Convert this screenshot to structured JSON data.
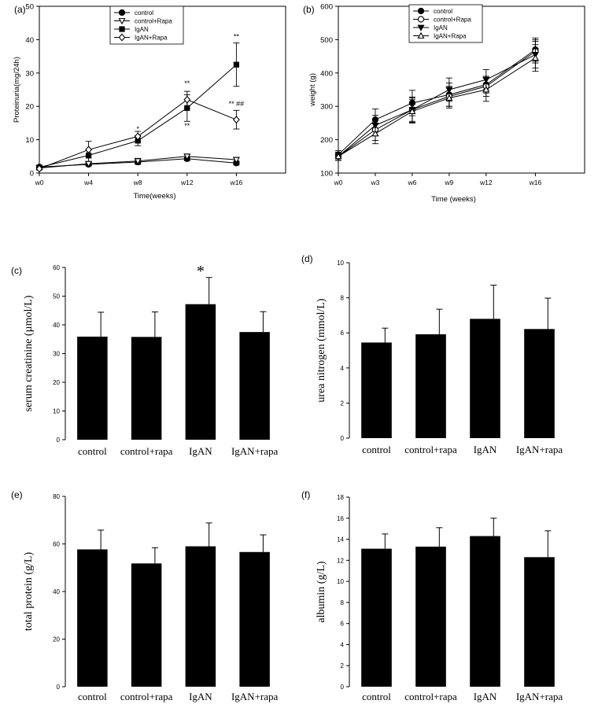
{
  "figure": {
    "background": "#ffffff",
    "ink": "#000000"
  },
  "chart_data": [
    {
      "type": "line",
      "panel_label": "(a)",
      "title": "",
      "xlabel": "Time(weeks)",
      "ylabel": "Proteinuria(mg/24h)",
      "categories": [
        "w0",
        "w4",
        "w8",
        "w12",
        "w16"
      ],
      "x": [
        0,
        4,
        8,
        12,
        16
      ],
      "xlim": [
        0,
        20
      ],
      "ylim": [
        0,
        50
      ],
      "yticks": [
        0,
        10,
        20,
        30,
        40,
        50
      ],
      "legend": "top-center",
      "series": [
        {
          "name": "control",
          "marker": "filled-circle",
          "values": [
            1.8,
            2.6,
            3.3,
            4.3,
            3.0
          ],
          "errors": [
            0.4,
            0.5,
            0.7,
            0.6,
            0.6
          ]
        },
        {
          "name": "control+Rapa",
          "marker": "open-triangle-down",
          "values": [
            1.5,
            2.8,
            3.6,
            5.0,
            4.0
          ],
          "errors": [
            0.4,
            0.6,
            0.8,
            0.7,
            0.7
          ]
        },
        {
          "name": "IgAN",
          "marker": "filled-square",
          "values": [
            1.7,
            5.3,
            9.7,
            19.5,
            32.5
          ],
          "errors": [
            0.5,
            1.8,
            1.5,
            4.0,
            6.5
          ]
        },
        {
          "name": "IgAN+Rapa",
          "marker": "open-diamond",
          "values": [
            1.3,
            7.0,
            11.0,
            22.0,
            16.0
          ],
          "errors": [
            0.4,
            2.5,
            1.5,
            2.5,
            2.8
          ]
        }
      ],
      "annotations": [
        {
          "text": "*",
          "x": 8,
          "y": 12.5
        },
        {
          "text": "**",
          "x": 12,
          "y": 26.2
        },
        {
          "text": "**",
          "x": 12,
          "y": 13.5
        },
        {
          "text": "**",
          "x": 16,
          "y": 40.2
        },
        {
          "text": "** ##",
          "x": 16,
          "y": 20.0
        }
      ]
    },
    {
      "type": "line",
      "panel_label": "(b)",
      "title": "",
      "xlabel": "Time (weeks)",
      "ylabel": "weight (g)",
      "categories": [
        "w0",
        "w3",
        "w6",
        "w9",
        "w12",
        "w16"
      ],
      "x": [
        0,
        3,
        6,
        9,
        12,
        16
      ],
      "xlim": [
        0,
        20
      ],
      "ylim": [
        100,
        600
      ],
      "yticks": [
        100,
        200,
        300,
        400,
        500,
        600
      ],
      "legend": "top-center",
      "series": [
        {
          "name": "control",
          "marker": "filled-circle",
          "values": [
            155,
            260,
            310,
            335,
            365,
            470
          ],
          "errors": [
            12,
            32,
            38,
            35,
            25,
            35
          ]
        },
        {
          "name": "control+Rapa",
          "marker": "open-circle",
          "values": [
            150,
            230,
            290,
            330,
            360,
            465
          ],
          "errors": [
            12,
            32,
            38,
            30,
            30,
            35
          ]
        },
        {
          "name": "IgAN",
          "marker": "filled-triangle-down",
          "values": [
            150,
            243,
            290,
            350,
            380,
            455
          ],
          "errors": [
            12,
            30,
            35,
            35,
            30,
            40
          ]
        },
        {
          "name": "IgAN+Rapa",
          "marker": "open-triangle-up",
          "values": [
            150,
            218,
            285,
            325,
            350,
            445
          ],
          "errors": [
            12,
            30,
            35,
            30,
            35,
            40
          ]
        }
      ]
    },
    {
      "type": "bar",
      "panel_label": "(c)",
      "title": "",
      "xlabel": "",
      "ylabel": "serum creatinine (µmol/L)",
      "categories": [
        "control",
        "control+rapa",
        "IgAN",
        "IgAN+rapa"
      ],
      "values": [
        35.9,
        35.8,
        47.2,
        37.5
      ],
      "errors": [
        8.5,
        8.7,
        9.3,
        7.1
      ],
      "ylim": [
        0,
        60
      ],
      "yticks": [
        0,
        10,
        20,
        30,
        40,
        50,
        60
      ],
      "annotations": [
        {
          "text": "*",
          "category": "IgAN"
        }
      ]
    },
    {
      "type": "bar",
      "panel_label": "(d)",
      "title": "",
      "xlabel": "",
      "ylabel": "urea nitrogen (mmol/L)",
      "categories": [
        "control",
        "control+rapa",
        "IgAN",
        "IgAN+rapa"
      ],
      "values": [
        5.45,
        5.92,
        6.8,
        6.22
      ],
      "errors": [
        0.82,
        1.43,
        1.92,
        1.76
      ],
      "ylim": [
        0,
        10
      ],
      "yticks": [
        0,
        2,
        4,
        6,
        8,
        10
      ]
    },
    {
      "type": "bar",
      "panel_label": "(e)",
      "title": "",
      "xlabel": "",
      "ylabel": "total protein (g/L)",
      "categories": [
        "control",
        "control+rapa",
        "IgAN",
        "IgAN+rapa"
      ],
      "values": [
        57.7,
        51.8,
        59.0,
        56.6
      ],
      "errors": [
        8.1,
        6.6,
        9.8,
        7.2
      ],
      "ylim": [
        0,
        80
      ],
      "yticks": [
        0,
        20,
        40,
        60,
        80
      ]
    },
    {
      "type": "bar",
      "panel_label": "(f)",
      "title": "",
      "xlabel": "",
      "ylabel": "albumin (g/L)",
      "categories": [
        "control",
        "control+rapa",
        "IgAN",
        "IgAN+rapa"
      ],
      "values": [
        13.1,
        13.3,
        14.3,
        12.3
      ],
      "errors": [
        1.4,
        1.8,
        1.7,
        2.5
      ],
      "ylim": [
        0,
        18
      ],
      "yticks": [
        0,
        2,
        4,
        6,
        8,
        10,
        12,
        14,
        16,
        18
      ]
    }
  ]
}
